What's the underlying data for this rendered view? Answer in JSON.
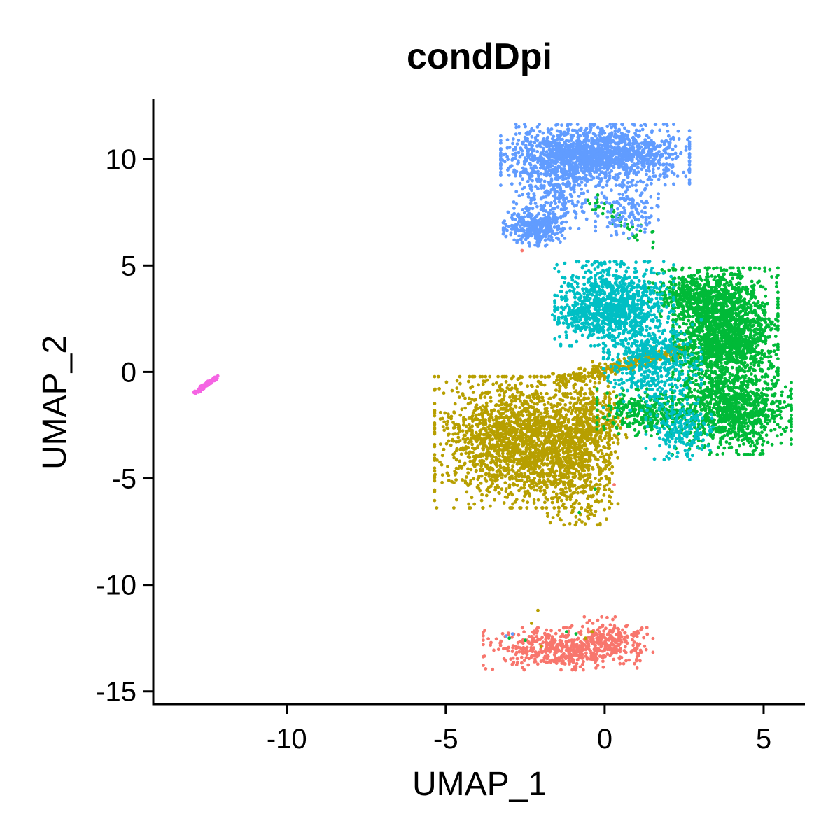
{
  "chart_data": {
    "type": "scatter",
    "title": "condDpi",
    "xlabel": "UMAP_1",
    "ylabel": "UMAP_2",
    "xlim": [
      -14.2,
      6.3
    ],
    "ylim": [
      -15.6,
      12.8
    ],
    "x_ticks": [
      -10,
      -5,
      0,
      5
    ],
    "x_tick_labels": [
      "-10",
      "-5",
      "0",
      "5"
    ],
    "y_ticks": [
      10,
      5,
      0,
      -5,
      -10,
      -15
    ],
    "y_tick_labels": [
      "10",
      "5",
      "0",
      "-5",
      "-10",
      "-15"
    ],
    "grid": false,
    "legend": "none",
    "series": [
      {
        "color": "#F8766D",
        "clusters": [
          {
            "cx": -1.4,
            "cy": -13.0,
            "sx": 1.1,
            "sy": 0.45,
            "n": 500
          },
          {
            "cx": 0.2,
            "cy": -12.6,
            "sx": 0.6,
            "sy": 0.5,
            "n": 180
          }
        ],
        "points": [
          [
            -2.6,
            5.7
          ],
          [
            0.3,
            -5.3
          ]
        ]
      },
      {
        "color": "#B79F00",
        "clusters": [
          {
            "cx": -2.6,
            "cy": -3.3,
            "sx": 1.25,
            "sy": 1.4,
            "n": 1900
          },
          {
            "cx": -0.9,
            "cy": -4.1,
            "sx": 0.6,
            "sy": 1.4,
            "n": 500
          },
          {
            "cx": -0.3,
            "cy": -2.3,
            "sx": 0.45,
            "sy": 1.0,
            "n": 200
          }
        ],
        "segments": [
          {
            "x0": -1.5,
            "y0": -0.4,
            "x1": 2.5,
            "y1": 1.0,
            "spread": 0.18,
            "n": 300
          }
        ],
        "points": [
          [
            -2.0,
            -12.9
          ],
          [
            -2.1,
            -11.2
          ],
          [
            -2.3,
            -11.8
          ],
          [
            -0.6,
            -12.5
          ],
          [
            3.4,
            1.8
          ],
          [
            2.9,
            0.5
          ],
          [
            0.9,
            3.2
          ],
          [
            -0.4,
            -12.2
          ]
        ]
      },
      {
        "color": "#00BA38",
        "clusters": [
          {
            "cx": 3.8,
            "cy": 1.8,
            "sx": 0.75,
            "sy": 1.4,
            "n": 1900
          },
          {
            "cx": 4.0,
            "cy": -1.9,
            "sx": 0.85,
            "sy": 0.9,
            "n": 900
          },
          {
            "cx": 1.3,
            "cy": -1.9,
            "sx": 0.7,
            "sy": 0.5,
            "n": 300
          },
          {
            "cx": 2.7,
            "cy": 3.7,
            "sx": 0.6,
            "sy": 0.5,
            "n": 300
          }
        ],
        "segments": [
          {
            "x0": -0.5,
            "y0": 8.2,
            "x1": 1.4,
            "y1": 6.2,
            "spread": 0.2,
            "n": 45
          }
        ],
        "points": [
          [
            -2.5,
            -12.6
          ],
          [
            -1.2,
            -12.2
          ],
          [
            -0.9,
            -12.3
          ],
          [
            -3.0,
            -12.5
          ],
          [
            -0.8,
            -6.6
          ],
          [
            -0.3,
            -5.5
          ]
        ]
      },
      {
        "color": "#00BFC4",
        "clusters": [
          {
            "cx": 0.3,
            "cy": 3.2,
            "sx": 0.85,
            "sy": 0.9,
            "n": 900
          },
          {
            "cx": 1.5,
            "cy": 0.4,
            "sx": 0.7,
            "sy": 1.0,
            "n": 500
          },
          {
            "cx": 2.4,
            "cy": -2.8,
            "sx": 0.5,
            "sy": 0.6,
            "n": 200
          },
          {
            "cx": -0.3,
            "cy": 2.6,
            "sx": 0.7,
            "sy": 0.4,
            "n": 200
          }
        ],
        "points": [
          [
            -0.7,
            2.8
          ],
          [
            0.6,
            -1.4
          ]
        ]
      },
      {
        "color": "#619CFF",
        "clusters": [
          {
            "cx": -0.3,
            "cy": 10.2,
            "sx": 1.35,
            "sy": 0.65,
            "n": 1600
          },
          {
            "cx": -2.2,
            "cy": 6.8,
            "sx": 0.45,
            "sy": 0.4,
            "n": 300
          },
          {
            "cx": -1.6,
            "cy": 8.5,
            "sx": 0.6,
            "sy": 0.8,
            "n": 250
          },
          {
            "cx": 0.7,
            "cy": 7.6,
            "sx": 0.45,
            "sy": 0.6,
            "n": 150
          }
        ],
        "points": [
          [
            -3.1,
            -12.4
          ],
          [
            -2.9,
            -12.3
          ]
        ]
      },
      {
        "color": "#F564E3",
        "segments": [
          {
            "x0": -12.9,
            "y0": -1.0,
            "x1": -12.2,
            "y1": -0.25,
            "spread": 0.04,
            "n": 90
          }
        ]
      }
    ]
  }
}
